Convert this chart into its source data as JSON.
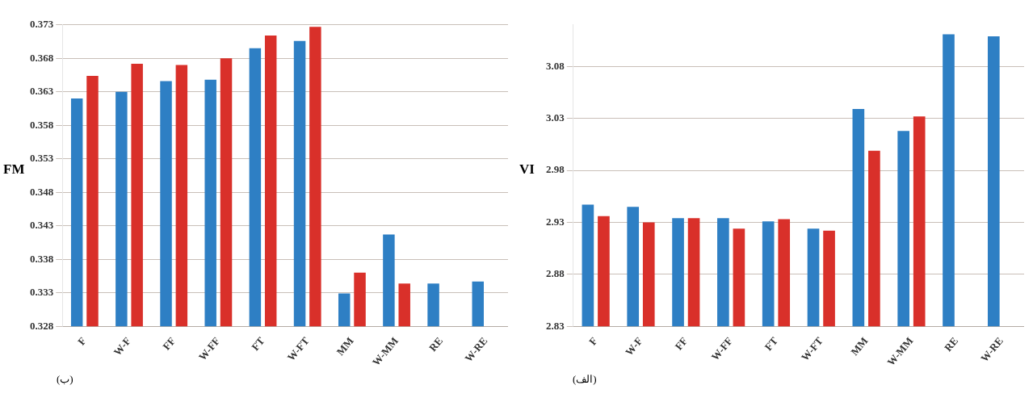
{
  "chart_data": [
    {
      "type": "bar",
      "ylabel": "FM",
      "categories": [
        "F",
        "W-F",
        "FF",
        "W-FF",
        "FT",
        "W-FT",
        "MM",
        "W-MM",
        "RE",
        "W-RE"
      ],
      "series": [
        {
          "color": "#2e7fc4",
          "values": [
            0.362,
            0.363,
            0.3646,
            0.3648,
            0.3695,
            0.3706,
            0.3329,
            0.3417,
            0.3344,
            0.3347
          ]
        },
        {
          "color": "#d9302a",
          "values": [
            0.3654,
            0.3672,
            0.367,
            0.368,
            0.3714,
            0.3727,
            0.336,
            0.3344,
            null,
            null
          ]
        }
      ],
      "ylim": [
        0.328,
        0.373
      ],
      "yticks": [
        0.328,
        0.333,
        0.338,
        0.343,
        0.348,
        0.353,
        0.358,
        0.363,
        0.368,
        0.373
      ],
      "grid": "y",
      "legend": false,
      "annotations": [
        "(ب)"
      ]
    },
    {
      "type": "bar",
      "ylabel": "VI",
      "categories": [
        "F",
        "W-F",
        "FF",
        "W-FF",
        "FT",
        "W-FT",
        "MM",
        "W-MM",
        "RE",
        "W-RE"
      ],
      "series": [
        {
          "color": "#2e7fc4",
          "values": [
            2.947,
            2.945,
            2.934,
            2.934,
            2.931,
            2.924,
            3.039,
            3.018,
            3.111,
            3.109
          ]
        },
        {
          "color": "#d9302a",
          "values": [
            2.936,
            2.93,
            2.934,
            2.924,
            2.933,
            2.922,
            2.999,
            3.032,
            null,
            null
          ]
        }
      ],
      "ylim": [
        2.83,
        3.12
      ],
      "yticks": [
        2.83,
        2.88,
        2.93,
        2.98,
        3.03,
        3.08
      ],
      "grid": "y",
      "legend": false,
      "annotations": [
        "(الف)"
      ]
    }
  ]
}
